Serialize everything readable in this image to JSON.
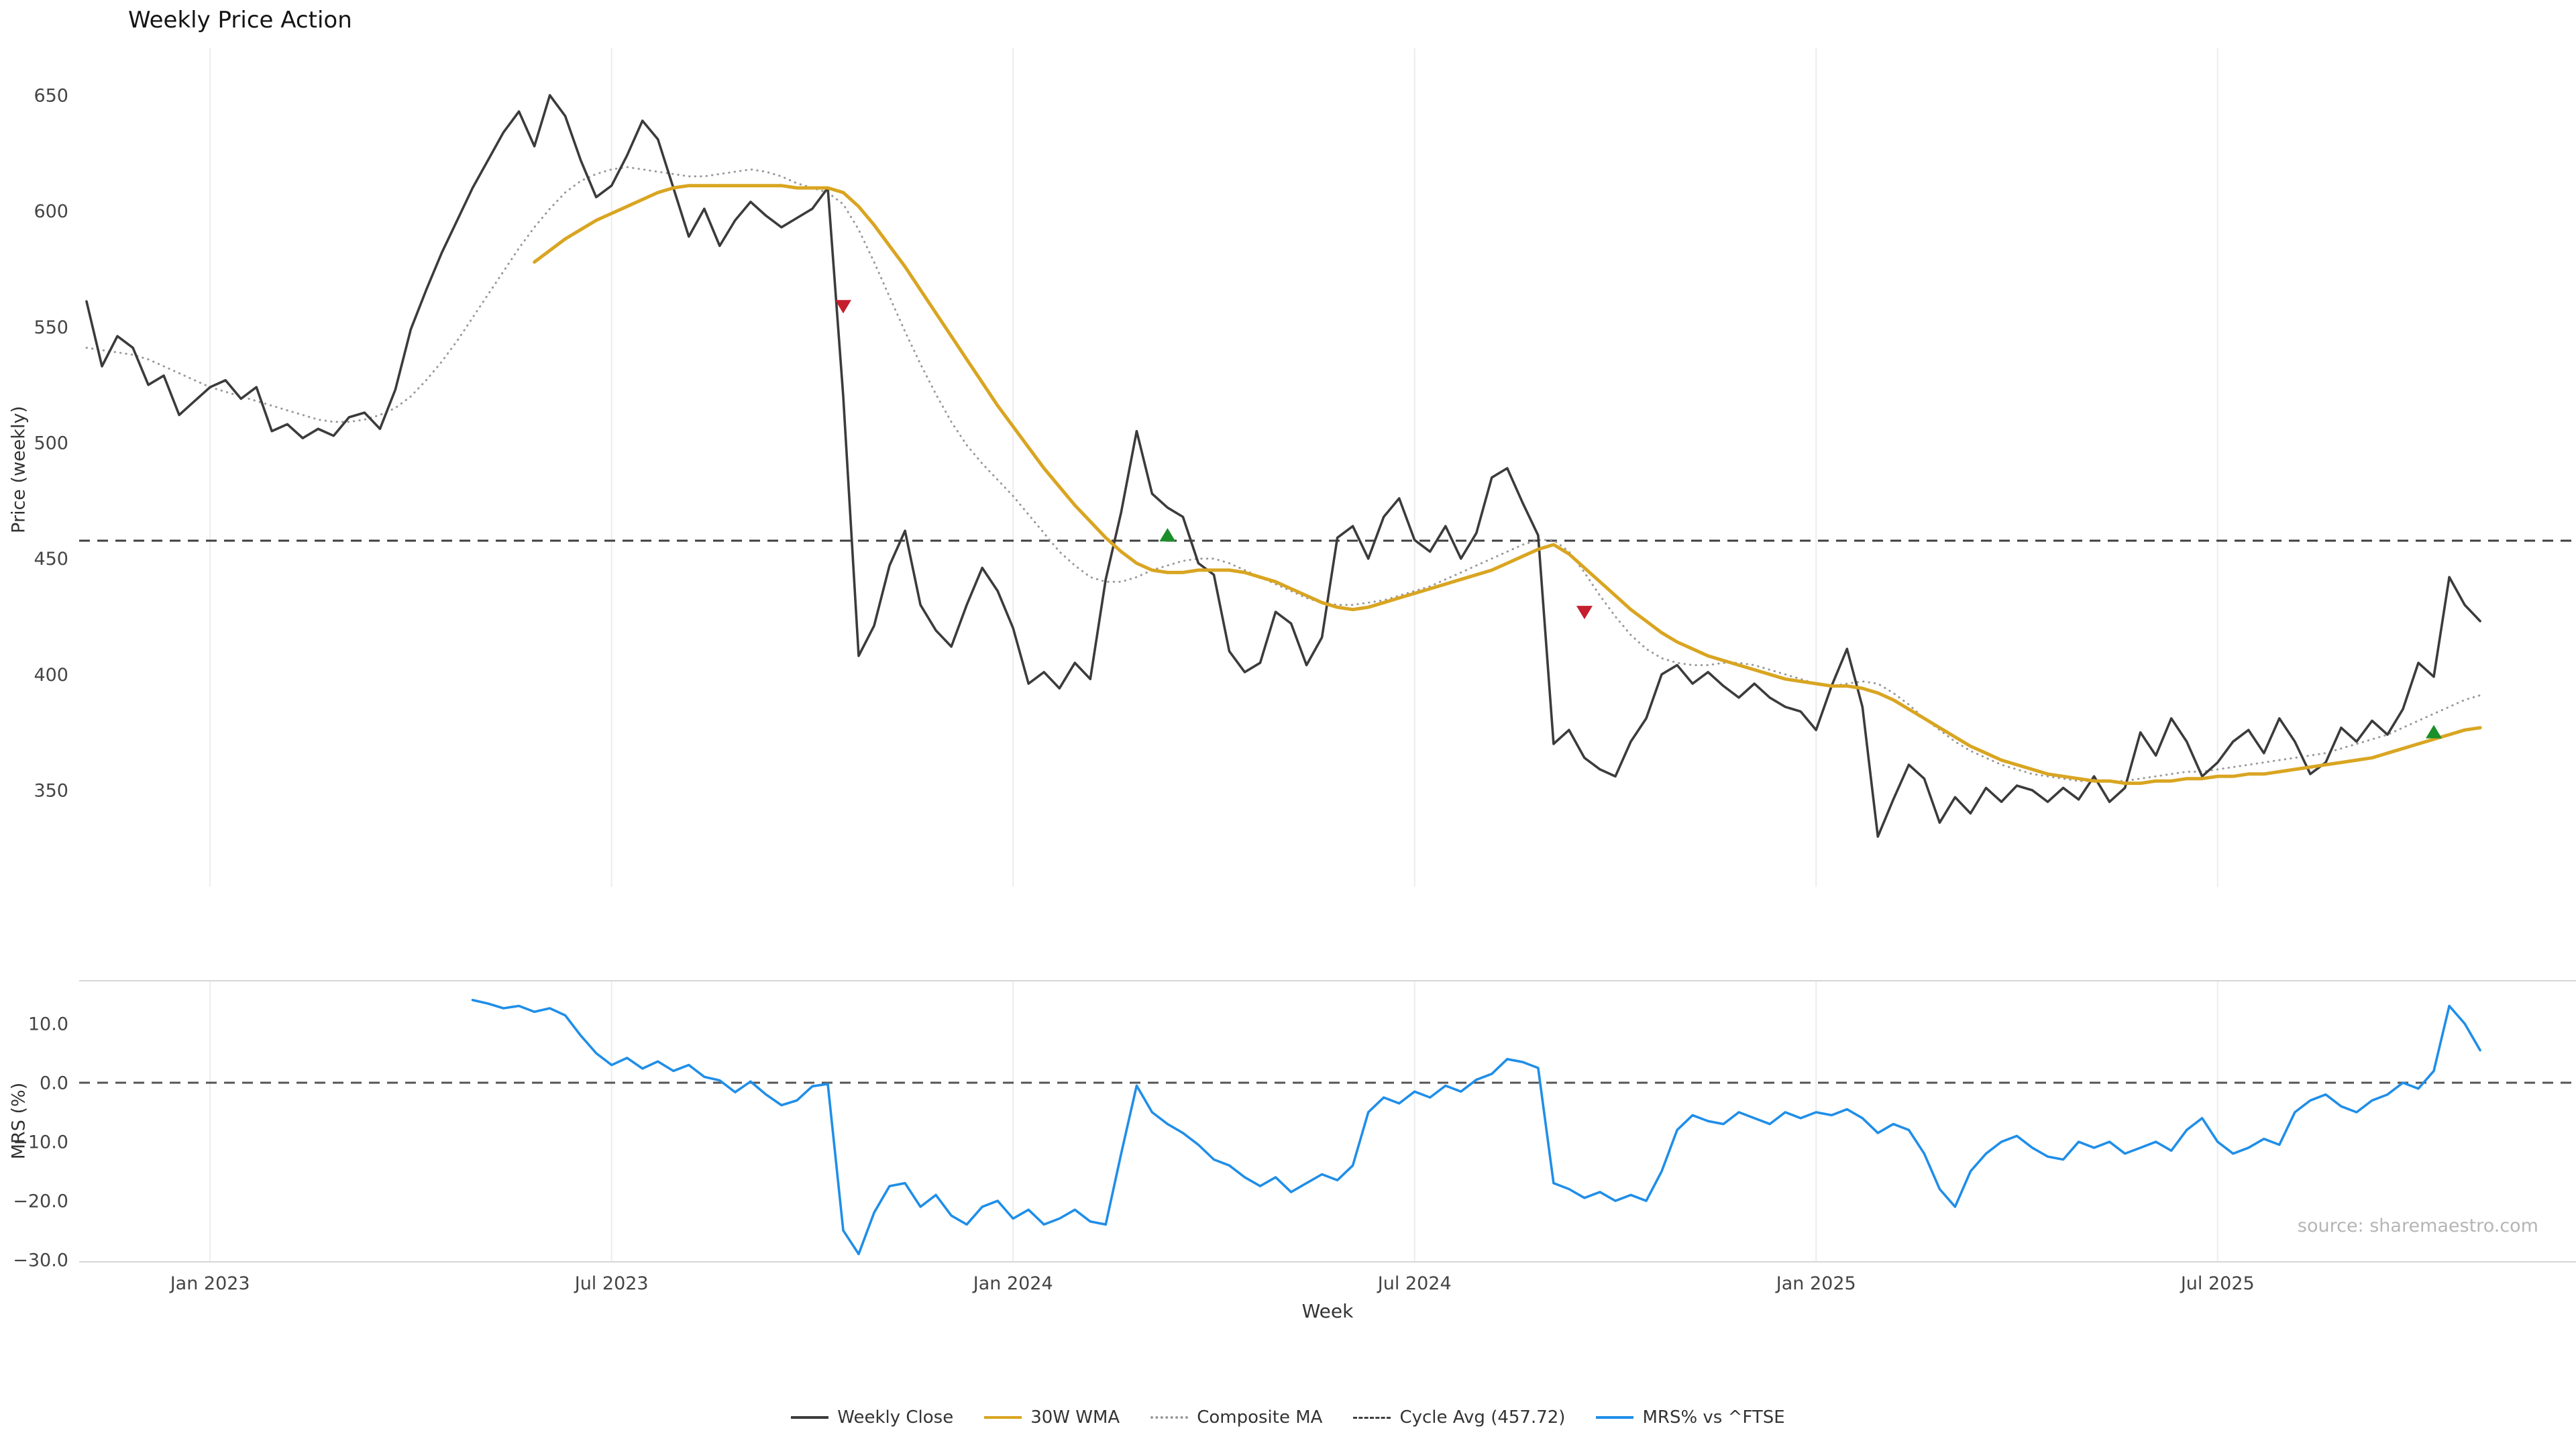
{
  "title": "Weekly Price Action",
  "source": "source: sharemaestro.com",
  "axes": {
    "x_label": "Week",
    "price_y_label": "Price (weekly)",
    "mrs_y_label": "MRS (%)"
  },
  "legend": [
    {
      "label": "Weekly Close",
      "style": "solid",
      "color": "#3b3b3b"
    },
    {
      "label": "30W WMA",
      "style": "solid",
      "color": "#d9a521"
    },
    {
      "label": "Composite MA",
      "style": "dotted",
      "color": "#9a9a9a"
    },
    {
      "label": "Cycle Avg (457.72)",
      "style": "dashed",
      "color": "#3f3f3f"
    },
    {
      "label": "MRS% vs ^FTSE",
      "style": "solid",
      "color": "#1f8ee8"
    }
  ],
  "chart_data": {
    "type": "line",
    "x_unit": "week_index",
    "weeks_total": 156,
    "x_ticks": [
      {
        "week": 8,
        "label": "Jan 2023"
      },
      {
        "week": 34,
        "label": "Jul 2023"
      },
      {
        "week": 60,
        "label": "Jan 2024"
      },
      {
        "week": 86,
        "label": "Jul 2024"
      },
      {
        "week": 112,
        "label": "Jan 2025"
      },
      {
        "week": 138,
        "label": "Jul 2025"
      }
    ],
    "price_panel": {
      "ylabel": "Price (weekly)",
      "ylim": [
        308,
        670
      ],
      "yticks": [
        {
          "v": 650,
          "label": "650"
        },
        {
          "v": 600,
          "label": "600"
        },
        {
          "v": 550,
          "label": "550"
        },
        {
          "v": 500,
          "label": "500"
        },
        {
          "v": 450,
          "label": "450"
        },
        {
          "v": 400,
          "label": "400"
        },
        {
          "v": 350,
          "label": "350"
        }
      ],
      "cycle_avg": 457.72,
      "series": [
        {
          "name": "Weekly Close",
          "start_week": 0,
          "color": "#3b3b3b",
          "dash": "solid",
          "values": [
            561,
            533,
            546,
            541,
            525,
            529,
            512,
            518,
            524,
            527,
            519,
            524,
            505,
            508,
            502,
            506,
            503,
            511,
            513,
            506,
            523,
            549,
            566,
            582,
            596,
            610,
            622,
            634,
            643,
            628,
            650,
            641,
            622,
            606,
            611,
            624,
            639,
            631,
            610,
            589,
            601,
            585,
            596,
            604,
            598,
            593,
            597,
            601,
            610,
            520,
            408,
            421,
            447,
            462,
            430,
            419,
            412,
            430,
            446,
            436,
            420,
            396,
            401,
            394,
            405,
            398,
            441,
            470,
            505,
            478,
            472,
            468,
            448,
            443,
            410,
            401,
            405,
            427,
            422,
            404,
            416,
            459,
            464,
            450,
            468,
            476,
            458,
            453,
            464,
            450,
            461,
            485,
            489,
            474,
            460,
            370,
            376,
            364,
            359,
            356,
            371,
            381,
            400,
            404,
            396,
            401,
            395,
            390,
            396,
            390,
            386,
            384,
            376,
            395,
            411,
            386,
            330,
            346,
            361,
            355,
            336,
            347,
            340,
            351,
            345,
            352,
            350,
            345,
            351,
            346,
            356,
            345,
            351,
            375,
            365,
            381,
            371,
            356,
            362,
            371,
            376,
            366,
            381,
            371,
            357,
            362,
            377,
            371,
            380,
            374,
            385,
            405,
            399,
            442,
            430,
            423
          ]
        },
        {
          "name": "30W WMA",
          "start_week": 29,
          "color": "#d9a521",
          "dash": "solid",
          "values": [
            578,
            583,
            588,
            592,
            596,
            599,
            602,
            605,
            608,
            610,
            611,
            611,
            611,
            611,
            611,
            611,
            611,
            610,
            610,
            610,
            608,
            602,
            594,
            585,
            576,
            566,
            556,
            546,
            536,
            526,
            516,
            507,
            498,
            489,
            481,
            473,
            466,
            459,
            453,
            448,
            445,
            444,
            444,
            445,
            445,
            445,
            444,
            442,
            440,
            437,
            434,
            431,
            429,
            428,
            429,
            431,
            433,
            435,
            437,
            439,
            441,
            443,
            445,
            448,
            451,
            454,
            456,
            452,
            446,
            440,
            434,
            428,
            423,
            418,
            414,
            411,
            408,
            406,
            404,
            402,
            400,
            398,
            397,
            396,
            395,
            395,
            394,
            392,
            389,
            385,
            381,
            377,
            373,
            369,
            366,
            363,
            361,
            359,
            357,
            356,
            355,
            354,
            354,
            353,
            353,
            354,
            354,
            355,
            355,
            356,
            356,
            357,
            357,
            358,
            359,
            360,
            361,
            362,
            363,
            364,
            366,
            368,
            370,
            372,
            374,
            376,
            377
          ]
        },
        {
          "name": "Composite MA",
          "start_week": 0,
          "color": "#9a9a9a",
          "dash": "dotted",
          "values": [
            541,
            540,
            539,
            538,
            536,
            533,
            530,
            527,
            524,
            522,
            520,
            518,
            516,
            514,
            512,
            510,
            509,
            509,
            510,
            512,
            515,
            520,
            527,
            535,
            544,
            554,
            564,
            574,
            584,
            593,
            601,
            608,
            613,
            616,
            618,
            619,
            618,
            617,
            616,
            615,
            615,
            616,
            617,
            618,
            617,
            615,
            612,
            610,
            608,
            603,
            592,
            578,
            563,
            548,
            534,
            521,
            509,
            499,
            491,
            484,
            477,
            469,
            461,
            453,
            447,
            442,
            440,
            440,
            442,
            445,
            447,
            449,
            450,
            450,
            448,
            445,
            442,
            439,
            436,
            433,
            431,
            430,
            430,
            431,
            432,
            434,
            436,
            438,
            441,
            444,
            447,
            450,
            453,
            456,
            458,
            458,
            453,
            444,
            434,
            425,
            417,
            411,
            407,
            405,
            404,
            404,
            405,
            405,
            404,
            402,
            400,
            398,
            396,
            395,
            396,
            397,
            396,
            392,
            387,
            381,
            376,
            371,
            367,
            364,
            361,
            359,
            357,
            356,
            355,
            354,
            354,
            354,
            354,
            355,
            356,
            357,
            358,
            358,
            359,
            360,
            361,
            362,
            363,
            364,
            365,
            366,
            368,
            370,
            372,
            374,
            377,
            380,
            383,
            386,
            389,
            391
          ]
        }
      ],
      "signals": [
        {
          "type": "sell",
          "week": 49,
          "price": 559
        },
        {
          "type": "buy",
          "week": 70,
          "price": 460
        },
        {
          "type": "sell",
          "week": 97,
          "price": 427
        },
        {
          "type": "buy",
          "week": 152,
          "price": 375
        }
      ]
    },
    "mrs_panel": {
      "ylabel": "MRS (%)",
      "ylim": [
        -30.3,
        17.3
      ],
      "yticks": [
        {
          "v": 10,
          "label": "10.0"
        },
        {
          "v": 0,
          "label": "0.0"
        },
        {
          "v": -10,
          "label": "−10.0"
        },
        {
          "v": -20,
          "label": "−20.0"
        },
        {
          "v": -30,
          "label": "−30.0"
        }
      ],
      "zero_line": 0,
      "series": [
        {
          "name": "MRS% vs ^FTSE",
          "start_week": 25,
          "color": "#1f8ee8",
          "dash": "solid",
          "values": [
            14.0,
            13.4,
            12.6,
            13.0,
            12.0,
            12.6,
            11.4,
            8.0,
            5.0,
            3.0,
            4.2,
            2.4,
            3.6,
            2.0,
            3.0,
            1.0,
            0.4,
            -1.6,
            0.2,
            -2.0,
            -3.8,
            -3.0,
            -0.6,
            -0.2,
            -25.0,
            -29.0,
            -22.0,
            -17.5,
            -17.0,
            -21.0,
            -19.0,
            -22.5,
            -24.0,
            -21.0,
            -20.0,
            -23.0,
            -21.5,
            -24.0,
            -23.0,
            -21.5,
            -23.5,
            -24.0,
            -12.0,
            -0.5,
            -5.0,
            -7.0,
            -8.5,
            -10.5,
            -13.0,
            -14.0,
            -16.0,
            -17.5,
            -16.0,
            -18.5,
            -17.0,
            -15.5,
            -16.5,
            -14.0,
            -5.0,
            -2.5,
            -3.5,
            -1.5,
            -2.5,
            -0.5,
            -1.5,
            0.5,
            1.5,
            4.0,
            3.5,
            2.5,
            -17.0,
            -18.0,
            -19.5,
            -18.5,
            -20.0,
            -19.0,
            -20.0,
            -15.0,
            -8.0,
            -5.5,
            -6.5,
            -7.0,
            -5.0,
            -6.0,
            -7.0,
            -5.0,
            -6.0,
            -5.0,
            -5.5,
            -4.5,
            -6.0,
            -8.5,
            -7.0,
            -8.0,
            -12.0,
            -18.0,
            -21.0,
            -15.0,
            -12.0,
            -10.0,
            -9.0,
            -11.0,
            -12.5,
            -13.0,
            -10.0,
            -11.0,
            -10.0,
            -12.0,
            -11.0,
            -10.0,
            -11.5,
            -8.0,
            -6.0,
            -10.0,
            -12.0,
            -11.0,
            -9.5,
            -10.5,
            -5.0,
            -3.0,
            -2.0,
            -4.0,
            -5.0,
            -3.0,
            -2.0,
            0.0,
            -1.0,
            2.0,
            13.0,
            10.0,
            5.5
          ]
        }
      ]
    }
  }
}
